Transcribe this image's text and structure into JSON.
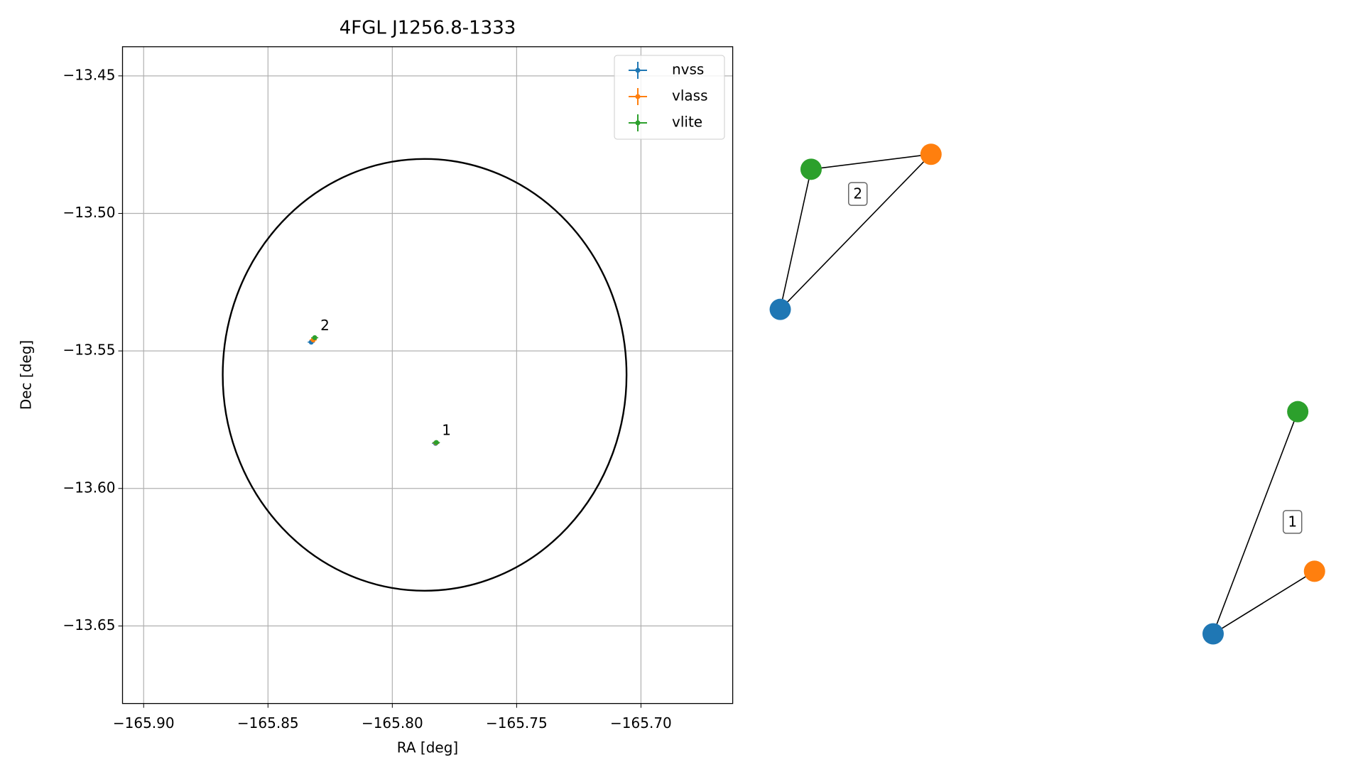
{
  "chart_data": {
    "type": "scatter",
    "title": "4FGL J1256.8-1333",
    "x_label": "RA [deg]",
    "y_label": "Dec [deg]",
    "xlim": [
      -165.9085,
      -165.6631
    ],
    "ylim": [
      -13.6782,
      -13.4394
    ],
    "xticks": [
      {
        "value": -165.9,
        "label": "−165.90"
      },
      {
        "value": -165.85,
        "label": "−165.85"
      },
      {
        "value": -165.8,
        "label": "−165.80"
      },
      {
        "value": -165.75,
        "label": "−165.75"
      },
      {
        "value": -165.7,
        "label": "−165.70"
      }
    ],
    "yticks": [
      {
        "value": -13.45,
        "label": "−13.45"
      },
      {
        "value": -13.5,
        "label": "−13.50"
      },
      {
        "value": -13.55,
        "label": "−13.55"
      },
      {
        "value": -13.6,
        "label": "−13.60"
      },
      {
        "value": -13.65,
        "label": "−13.65"
      }
    ],
    "grid": true,
    "legend": "upper right",
    "series": [
      {
        "name": "nvss",
        "color": "#1f77b4",
        "x": [
          -165.8326,
          -165.7826
        ],
        "values": [
          -13.5468,
          -13.5836
        ]
      },
      {
        "name": "vlass",
        "color": "#ff7f0e",
        "x": [
          -165.8318,
          -165.7824
        ],
        "values": [
          -13.546,
          -13.5834
        ]
      },
      {
        "name": "vlite",
        "color": "#2ca02c",
        "x": [
          -165.8312,
          -165.7823
        ],
        "values": [
          -13.5452,
          -13.5833
        ]
      }
    ],
    "circle": {
      "center_x": -165.787,
      "center_y": -13.5587,
      "radius_x": 0.0812,
      "radius_y": 0.0785
    },
    "annotations": [
      {
        "text": "2",
        "x": -165.8312,
        "y": -13.5452
      },
      {
        "text": "1",
        "x": -165.7823,
        "y": -13.5833
      }
    ]
  },
  "graph": {
    "groups": [
      {
        "label": "2"
      },
      {
        "label": "1"
      }
    ]
  }
}
